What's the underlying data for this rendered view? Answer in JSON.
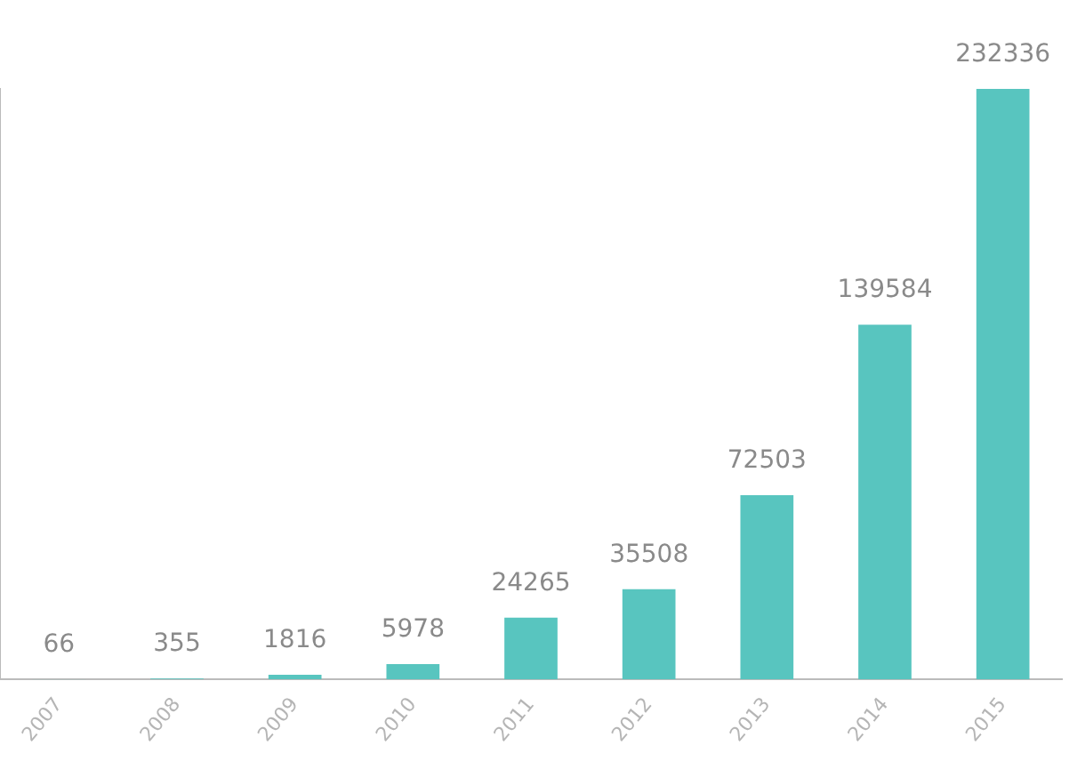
{
  "chart_data": {
    "type": "bar",
    "categories": [
      "2007",
      "2008",
      "2009",
      "2010",
      "2011",
      "2012",
      "2013",
      "2014",
      "2015"
    ],
    "values": [
      66,
      355,
      1816,
      5978,
      24265,
      35508,
      72503,
      139584,
      232336
    ],
    "color": "#58c5bf",
    "data_labels": true,
    "grid": false,
    "legend": false
  }
}
